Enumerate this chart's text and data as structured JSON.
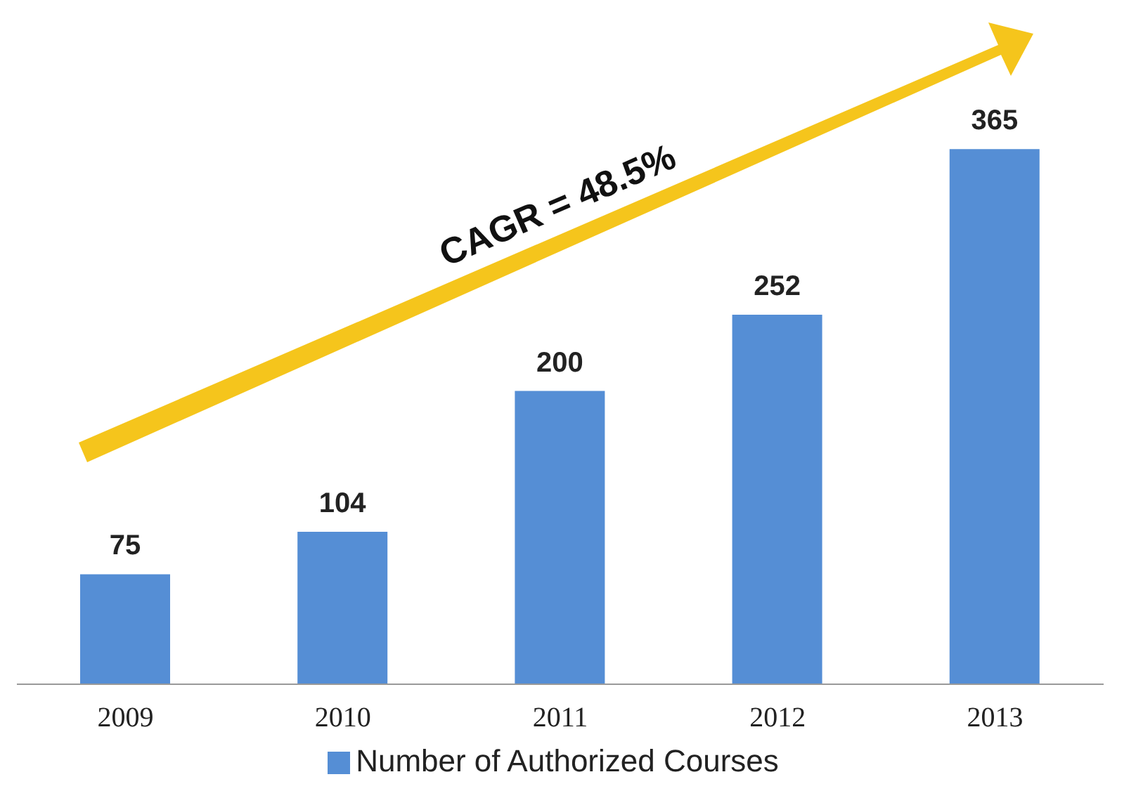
{
  "chart_data": {
    "type": "bar",
    "categories": [
      "2009",
      "2010",
      "2011",
      "2012",
      "2013"
    ],
    "series": [
      {
        "name": "Number of Authorized Courses",
        "color": "#558ed5",
        "values": [
          75,
          104,
          200,
          252,
          365
        ]
      }
    ],
    "data_labels": true,
    "legend": "bottom",
    "grid": false,
    "annotations": [
      "CAGR = 48.5%"
    ]
  }
}
